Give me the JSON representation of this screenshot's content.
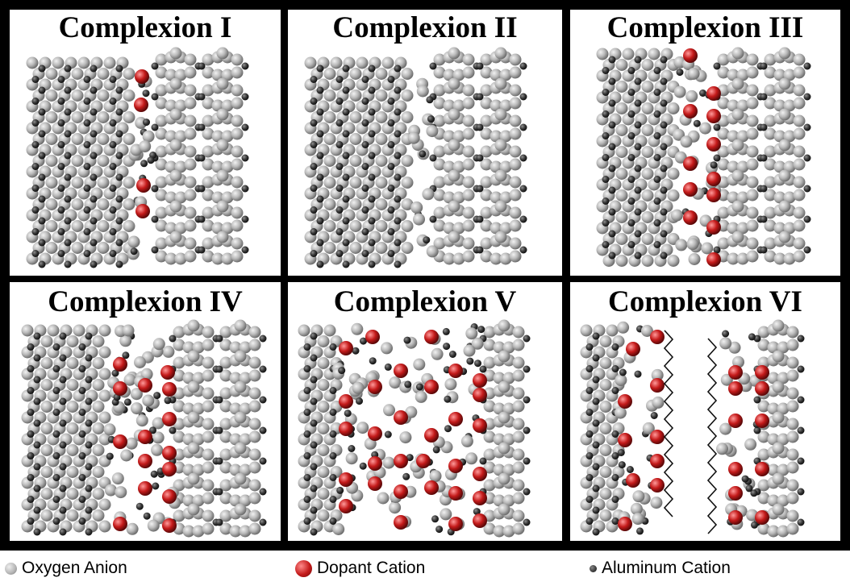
{
  "panels": [
    {
      "title": "Complexion I"
    },
    {
      "title": "Complexion II"
    },
    {
      "title": "Complexion III"
    },
    {
      "title": "Complexion IV"
    },
    {
      "title": "Complexion V"
    },
    {
      "title": "Complexion VI"
    }
  ],
  "legend": {
    "oxygen": "Oxygen Anion",
    "dopant": "Dopant Cation",
    "aluminum": "Aluminum Cation"
  },
  "colors": {
    "oxygen": "#b8b8b8",
    "dopant": "#c41a1a",
    "aluminum": "#3a3a3a",
    "border": "#000000"
  }
}
